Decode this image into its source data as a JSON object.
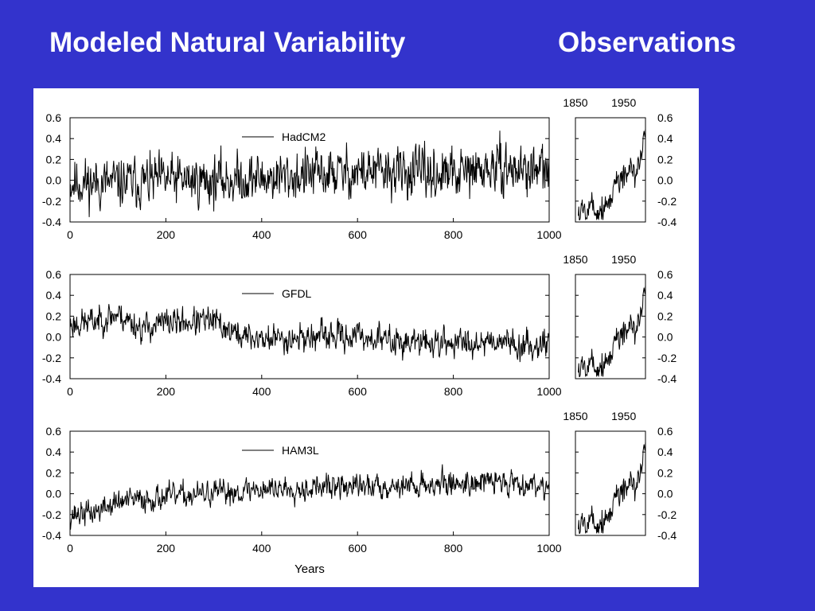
{
  "slide": {
    "title_left": "Modeled Natural Variability",
    "title_right": "Observations"
  },
  "colors": {
    "background": "#3333cc",
    "panel": "#ffffff",
    "line": "#000000",
    "title": "#ffffff"
  },
  "chart_data": [
    {
      "type": "line",
      "label": "HadCM2",
      "xlim": [
        0,
        1000
      ],
      "ylim": [
        -0.4,
        0.6
      ],
      "xticks": [
        "0",
        "200",
        "400",
        "600",
        "800",
        "1000"
      ],
      "yticks": [
        "-0.4",
        "-0.2",
        "0.0",
        "0.2",
        "0.4",
        "0.6"
      ],
      "xlabel": "",
      "trend_points": [
        [
          0,
          -0.02
        ],
        [
          100,
          -0.03
        ],
        [
          200,
          0.0
        ],
        [
          300,
          0.0
        ],
        [
          400,
          0.02
        ],
        [
          500,
          0.05
        ],
        [
          600,
          0.08
        ],
        [
          700,
          0.07
        ],
        [
          800,
          0.05
        ],
        [
          900,
          0.12
        ],
        [
          1000,
          0.08
        ]
      ],
      "noise_amplitude": 0.14,
      "seed": 11
    },
    {
      "type": "line",
      "label": "GFDL",
      "xlim": [
        0,
        1000
      ],
      "ylim": [
        -0.4,
        0.6
      ],
      "xticks": [
        "0",
        "200",
        "400",
        "600",
        "800",
        "1000"
      ],
      "yticks": [
        "-0.4",
        "-0.2",
        "0.0",
        "0.2",
        "0.4",
        "0.6"
      ],
      "xlabel": "",
      "trend_points": [
        [
          0,
          0.12
        ],
        [
          50,
          0.15
        ],
        [
          100,
          0.22
        ],
        [
          150,
          0.08
        ],
        [
          200,
          0.14
        ],
        [
          300,
          0.15
        ],
        [
          350,
          0.02
        ],
        [
          400,
          -0.02
        ],
        [
          500,
          0.0
        ],
        [
          600,
          0.01
        ],
        [
          700,
          -0.05
        ],
        [
          800,
          -0.06
        ],
        [
          900,
          -0.02
        ],
        [
          950,
          -0.1
        ],
        [
          1000,
          -0.03
        ]
      ],
      "noise_amplitude": 0.08,
      "seed": 23
    },
    {
      "type": "line",
      "label": "HAM3L",
      "xlim": [
        0,
        1000
      ],
      "ylim": [
        -0.4,
        0.6
      ],
      "xticks": [
        "0",
        "200",
        "400",
        "600",
        "800",
        "1000"
      ],
      "yticks": [
        "-0.4",
        "-0.2",
        "0.0",
        "0.2",
        "0.4",
        "0.6"
      ],
      "xlabel": "Years",
      "trend_points": [
        [
          0,
          -0.2
        ],
        [
          50,
          -0.18
        ],
        [
          100,
          -0.08
        ],
        [
          200,
          -0.03
        ],
        [
          300,
          0.0
        ],
        [
          400,
          0.05
        ],
        [
          500,
          0.06
        ],
        [
          600,
          0.07
        ],
        [
          700,
          0.08
        ],
        [
          800,
          0.1
        ],
        [
          900,
          0.12
        ],
        [
          1000,
          0.08
        ]
      ],
      "noise_amplitude": 0.07,
      "seed": 37
    }
  ],
  "observations": {
    "type": "line",
    "top_ticks": [
      "1850",
      "1950"
    ],
    "yticks": [
      "-0.4",
      "-0.2",
      "0.0",
      "0.2",
      "0.4",
      "0.6"
    ],
    "xlim": [
      1850,
      1995
    ],
    "ylim": [
      -0.4,
      0.6
    ],
    "trend_points": [
      [
        1860,
        -0.3
      ],
      [
        1880,
        -0.22
      ],
      [
        1900,
        -0.28
      ],
      [
        1920,
        -0.2
      ],
      [
        1940,
        0.05
      ],
      [
        1960,
        0.05
      ],
      [
        1975,
        0.05
      ],
      [
        1985,
        0.25
      ],
      [
        1995,
        0.45
      ]
    ],
    "noise_amplitude": 0.09,
    "seed": 5
  }
}
